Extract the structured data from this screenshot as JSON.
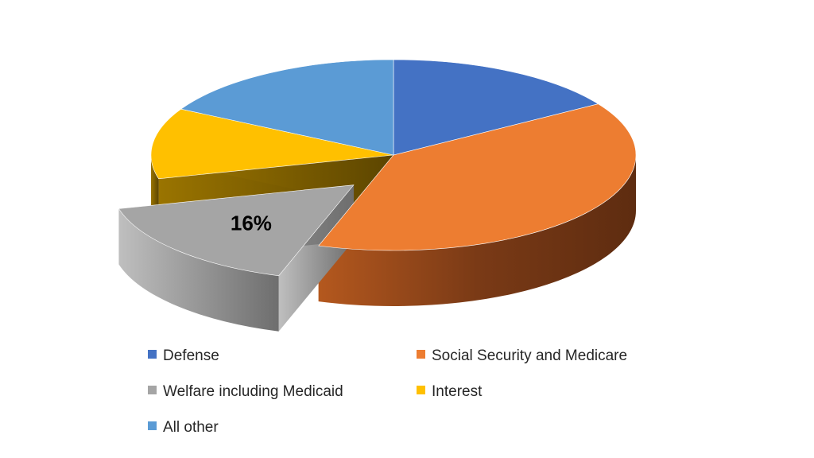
{
  "chart_data": {
    "type": "pie",
    "style": "3d-exploded",
    "exploded_slice": "Welfare including Medicaid",
    "categories": [
      "Defense",
      "Social Security and Medicare",
      "Welfare including Medicaid",
      "Interest",
      "All other"
    ],
    "values": [
      16,
      39,
      16,
      12,
      17
    ],
    "data_labels": [
      {
        "category": "Welfare including Medicaid",
        "text": "16%"
      }
    ],
    "colors": [
      "#4472C4",
      "#ED7D31",
      "#A5A5A5",
      "#FFC000",
      "#5B9BD5"
    ],
    "legend": {
      "position": "bottom",
      "entries": [
        {
          "label": "Defense",
          "color": "#4472C4"
        },
        {
          "label": "Social Security and Medicare",
          "color": "#ED7D31"
        },
        {
          "label": "Welfare including Medicaid",
          "color": "#A5A5A5"
        },
        {
          "label": "Interest",
          "color": "#FFC000"
        },
        {
          "label": "All other",
          "color": "#5B9BD5"
        }
      ]
    }
  }
}
